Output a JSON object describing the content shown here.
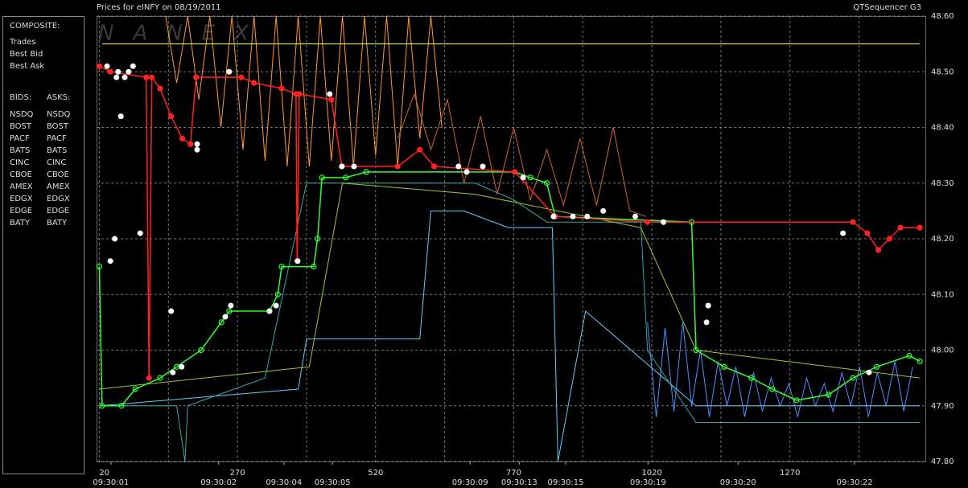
{
  "chart_data": {
    "type": "line",
    "title": "Prices for  eINFY  on  08/19/2011",
    "subtitle": "QTSequencer G3",
    "watermark": "NANEX",
    "xlim": [
      15,
      1515
    ],
    "ylim": [
      47.8,
      48.6
    ],
    "grid": true,
    "xticks": [
      20,
      270,
      520,
      770,
      1020,
      1270
    ],
    "x_minor_ticks": [
      145,
      395,
      645,
      895,
      1145,
      1395
    ],
    "time_ticks": [
      {
        "value": 41,
        "label": "09:30:01"
      },
      {
        "value": 236,
        "label": "09:30:02"
      },
      {
        "value": 354,
        "label": "09:30:04"
      },
      {
        "value": 442,
        "label": "09:30:05"
      },
      {
        "value": 691,
        "label": "09:30:09"
      },
      {
        "value": 780,
        "label": "09:30:13"
      },
      {
        "value": 864,
        "label": "09:30:15"
      },
      {
        "value": 1013,
        "label": "09:30:19"
      },
      {
        "value": 1176,
        "label": "09:30:20"
      },
      {
        "value": 1387,
        "label": "09:30:22"
      }
    ],
    "yticks": [
      {
        "value": 47.8,
        "label": "47.80"
      },
      {
        "value": 47.9,
        "label": "47.90"
      },
      {
        "value": 48.0,
        "label": "48.00"
      },
      {
        "value": 48.1,
        "label": "48.10"
      },
      {
        "value": 48.2,
        "label": "48.20"
      },
      {
        "value": 48.3,
        "label": "48.30"
      },
      {
        "value": 48.4,
        "label": "48.40"
      },
      {
        "value": 48.5,
        "label": "48.50"
      },
      {
        "value": 48.6,
        "label": "48.60"
      }
    ],
    "composite_title": "COMPOSITE:",
    "bids_title": "BIDS:",
    "asks_title": "ASKS:",
    "series": [
      {
        "name": "Trades",
        "type": "scatter",
        "color": "#ffffff",
        "x": [
          34,
          40,
          51,
          54,
          59,
          66,
          73,
          81,
          48,
          94,
          150,
          153,
          169,
          197,
          197,
          248,
          258,
          255,
          328,
          340,
          379,
          437,
          459,
          481,
          670,
          685,
          714,
          787,
          842,
          877,
          903,
          932,
          990,
          1041,
          1122,
          1119,
          1366,
          1413
        ],
        "values": [
          48.51,
          48.16,
          48.49,
          48.5,
          48.42,
          48.49,
          48.5,
          48.51,
          48.2,
          48.21,
          48.07,
          47.96,
          47.97,
          48.37,
          48.36,
          48.06,
          48.08,
          48.5,
          48.07,
          48.08,
          48.16,
          48.46,
          48.33,
          48.33,
          48.33,
          48.32,
          48.33,
          48.31,
          48.24,
          48.24,
          48.24,
          48.25,
          48.24,
          48.23,
          48.08,
          48.05,
          48.21,
          47.96
        ]
      },
      {
        "name": "Best Bid",
        "type": "line",
        "color": "#33ff33",
        "x": [
          20,
          25,
          60,
          85,
          130,
          160,
          204,
          241,
          255,
          328,
          343,
          350,
          408,
          415,
          423,
          466,
          503,
          772,
          800,
          830,
          845,
          1092,
          1100,
          1151,
          1200,
          1238,
          1282,
          1340,
          1384,
          1427,
          1486,
          1505
        ],
        "values": [
          48.15,
          47.9,
          47.9,
          47.93,
          47.95,
          47.97,
          48.0,
          48.05,
          48.07,
          48.07,
          48.1,
          48.15,
          48.15,
          48.2,
          48.31,
          48.31,
          48.32,
          48.32,
          48.31,
          48.3,
          48.24,
          48.23,
          48.0,
          47.97,
          47.95,
          47.93,
          47.91,
          47.92,
          47.95,
          47.97,
          47.99,
          47.98
        ]
      },
      {
        "name": "Best Ask",
        "type": "line",
        "color": "#ff2222",
        "x": [
          20,
          40,
          105,
          110,
          115,
          130,
          150,
          170,
          185,
          195,
          277,
          300,
          350,
          376,
          378,
          382,
          440,
          459,
          560,
          600,
          626,
          772,
          845,
          1012,
          1384,
          1410,
          1430,
          1450,
          1470,
          1505
        ],
        "values": [
          48.51,
          48.5,
          48.49,
          47.95,
          48.49,
          48.47,
          48.42,
          48.38,
          48.37,
          48.49,
          48.49,
          48.48,
          48.47,
          48.46,
          48.16,
          48.46,
          48.45,
          48.33,
          48.33,
          48.36,
          48.33,
          48.32,
          48.24,
          48.23,
          48.23,
          48.21,
          48.18,
          48.2,
          48.22,
          48.22
        ]
      }
    ],
    "exchanges": [
      {
        "name": "NSDQ",
        "bid_color": "#4f8fff",
        "ask_color": "#ff9933",
        "bid": {
          "x": [
            1012,
            1028,
            1044,
            1060,
            1076,
            1092,
            1108,
            1124,
            1140,
            1156,
            1172,
            1188,
            1204,
            1220,
            1236,
            1252,
            1268,
            1284,
            1300,
            1316,
            1332,
            1348,
            1364,
            1380,
            1396,
            1412,
            1428,
            1444,
            1460,
            1476,
            1492
          ],
          "values": [
            48.05,
            47.88,
            48.04,
            47.89,
            48.05,
            47.9,
            48.0,
            47.88,
            47.98,
            47.9,
            47.97,
            47.88,
            47.96,
            47.89,
            47.95,
            47.9,
            47.94,
            47.88,
            47.95,
            47.9,
            47.94,
            47.89,
            47.96,
            47.9,
            47.97,
            47.88,
            47.96,
            47.9,
            47.98,
            47.89,
            47.97
          ]
        },
        "ask": {
          "x": [
            140,
            160,
            180,
            200,
            220,
            240,
            260,
            280,
            300,
            320,
            340,
            360,
            380,
            400,
            420,
            440,
            460,
            480,
            500,
            520,
            540,
            560,
            580,
            600,
            620,
            640
          ],
          "values": [
            48.6,
            48.48,
            48.6,
            48.45,
            48.6,
            48.4,
            48.6,
            48.36,
            48.6,
            48.34,
            48.6,
            48.33,
            48.6,
            48.33,
            48.6,
            48.34,
            48.6,
            48.33,
            48.6,
            48.35,
            48.6,
            48.33,
            48.6,
            48.38,
            48.6,
            48.4
          ]
        }
      },
      {
        "name": "BOST",
        "bid_color": "#99e066",
        "ask_color": "#ff9955"
      },
      {
        "name": "PACF",
        "bid_color": "#33ffcc",
        "ask_color": "#ffff33",
        "ask": {
          "x": [
            25,
            1505
          ],
          "values": [
            48.55,
            48.55
          ]
        }
      },
      {
        "name": "BATS",
        "bid_color": "#66ccff",
        "ask_color": "#ffcc66",
        "bid": {
          "x": [
            20,
            380,
            395,
            600,
            620,
            680,
            760,
            840,
            850,
            900,
            1100,
            1505
          ],
          "values": [
            47.9,
            47.93,
            48.02,
            48.02,
            48.25,
            48.25,
            48.22,
            48.22,
            47.8,
            48.07,
            47.9,
            47.9
          ]
        }
      },
      {
        "name": "CINC",
        "bid_color": "#33aaaa",
        "ask_color": "#ccaa77",
        "bid": {
          "x": [
            20,
            160,
            175,
            180,
            320,
            395,
            700,
            770,
            830,
            1000,
            1012,
            1100,
            1505
          ],
          "values": [
            47.9,
            47.9,
            47.8,
            47.9,
            47.95,
            48.3,
            48.3,
            48.27,
            48.23,
            48.23,
            48.0,
            47.87,
            47.87
          ]
        }
      },
      {
        "name": "CBOE",
        "bid_color": "#2255cc",
        "ask_color": "#dd8833"
      },
      {
        "name": "AMEX",
        "bid_color": "#99cc33",
        "ask_color": "#ffbb33",
        "bid": {
          "x": [
            20,
            400,
            460,
            700,
            1000,
            1100,
            1505
          ],
          "values": [
            47.93,
            47.97,
            48.3,
            48.28,
            48.22,
            48.0,
            47.95
          ]
        }
      },
      {
        "name": "EDGX",
        "bid_color": "#44bb44",
        "ask_color": "#cc6633",
        "ask": {
          "x": [
            560,
            590,
            620,
            650,
            680,
            710,
            740,
            770,
            800,
            830,
            860,
            890,
            920,
            950,
            980,
            1010
          ],
          "values": [
            48.38,
            48.46,
            48.36,
            48.45,
            48.3,
            48.42,
            48.28,
            48.4,
            48.27,
            48.36,
            48.26,
            48.38,
            48.26,
            48.4,
            48.25,
            48.24
          ]
        }
      },
      {
        "name": "EDGE",
        "bid_color": "#33aa55",
        "ask_color": "#bb4422"
      },
      {
        "name": "BATY",
        "bid_color": "#4477dd",
        "ask_color": "#dd3322"
      }
    ]
  }
}
